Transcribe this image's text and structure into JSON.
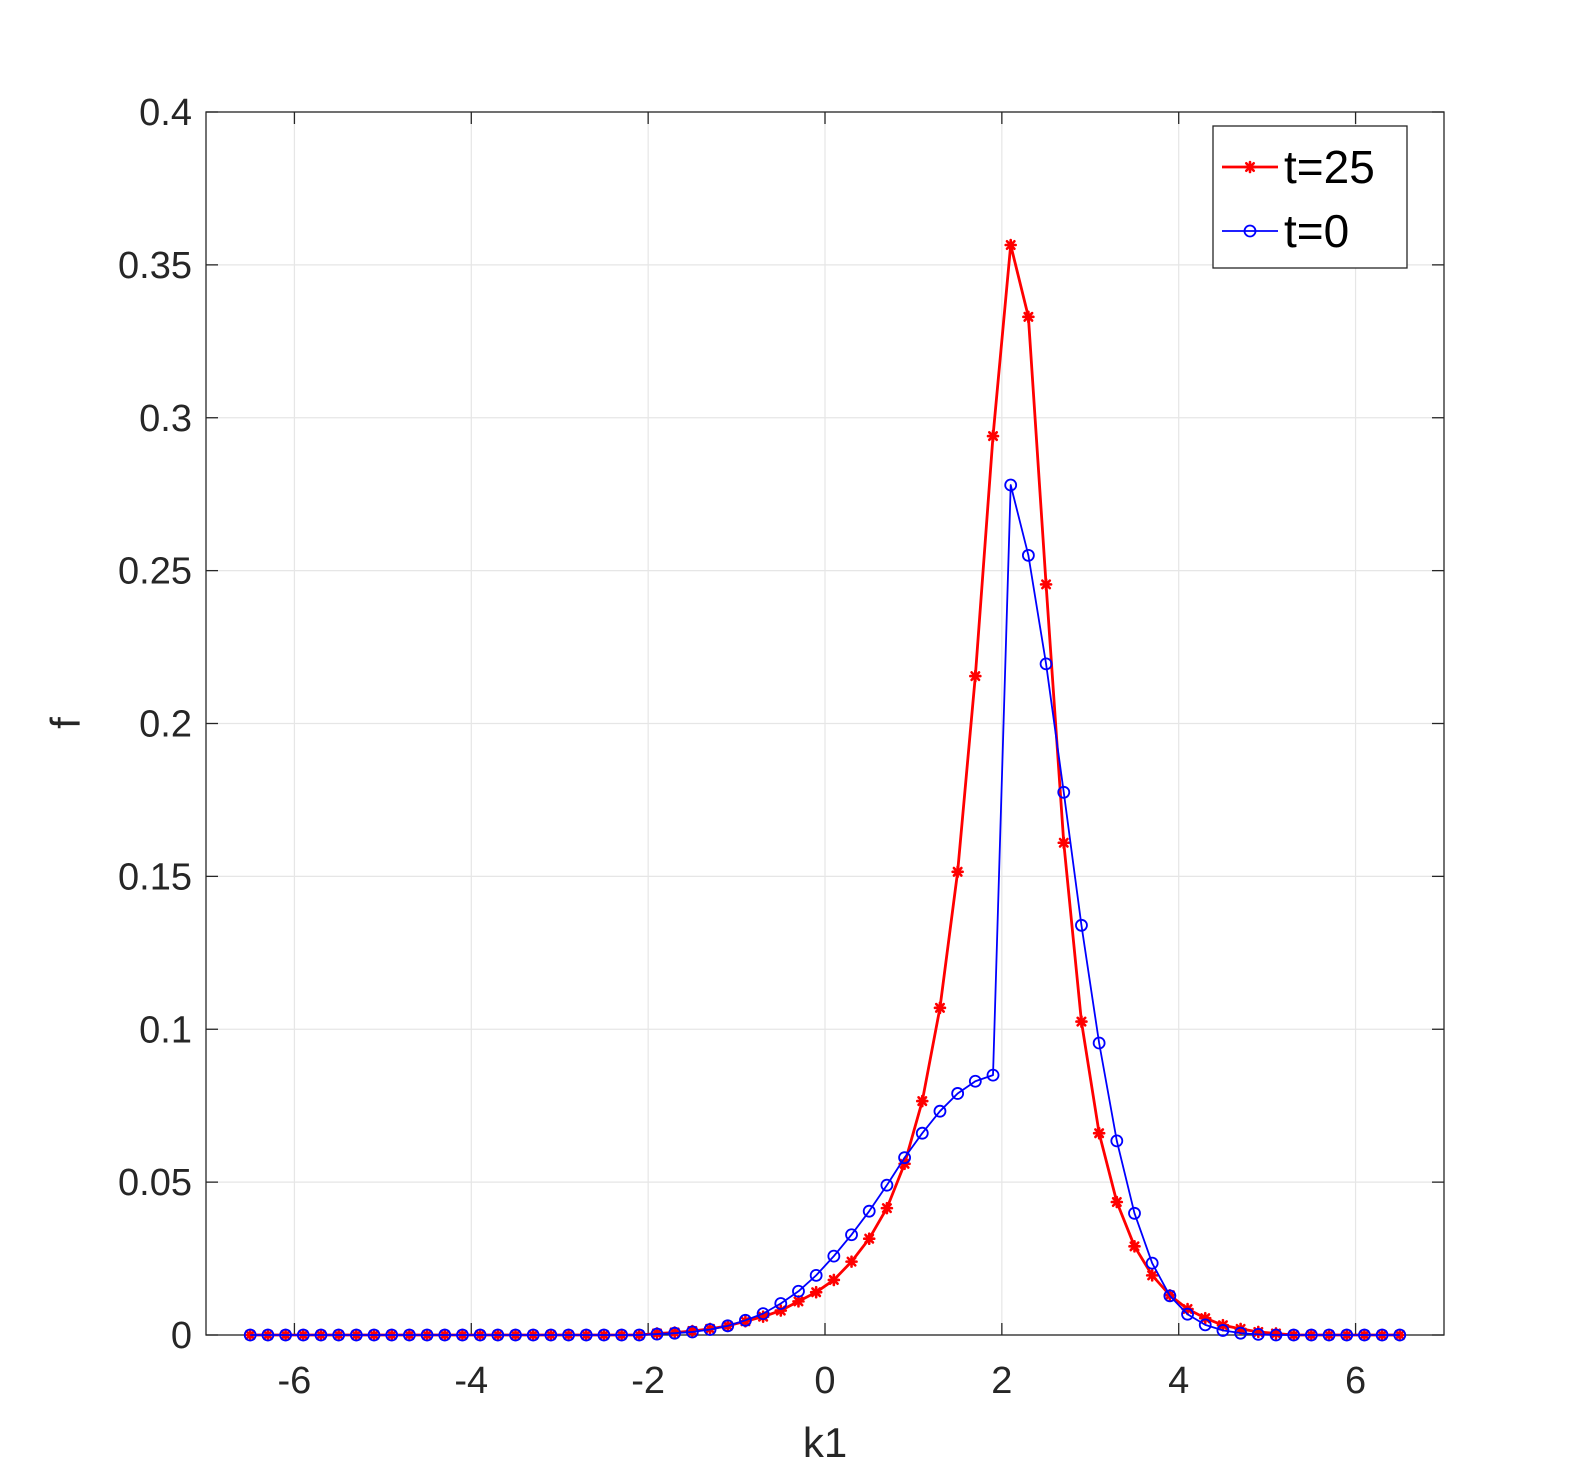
{
  "chart_data": {
    "type": "line",
    "title": "",
    "xlabel": "k1",
    "ylabel": "f",
    "xlim": [
      -7,
      7
    ],
    "ylim": [
      0,
      0.4
    ],
    "xticks": [
      -6,
      -4,
      -2,
      0,
      2,
      4,
      6
    ],
    "xtick_labels": [
      "-6",
      "-4",
      "-2",
      "0",
      "2",
      "4",
      "6"
    ],
    "yticks": [
      0,
      0.05,
      0.1,
      0.15,
      0.2,
      0.25,
      0.3,
      0.35,
      0.4
    ],
    "ytick_labels": [
      "0",
      "0.05",
      "0.1",
      "0.15",
      "0.2",
      "0.25",
      "0.3",
      "0.35",
      "0.4"
    ],
    "grid": true,
    "legend_position": "top-right",
    "x": [
      -6.5,
      -6.3,
      -6.1,
      -5.9,
      -5.7,
      -5.5,
      -5.3,
      -5.1,
      -4.9,
      -4.7,
      -4.5,
      -4.3,
      -4.1,
      -3.9,
      -3.7,
      -3.5,
      -3.3,
      -3.1,
      -2.9,
      -2.7,
      -2.5,
      -2.3,
      -2.1,
      -1.9,
      -1.7,
      -1.5,
      -1.3,
      -1.1,
      -0.9,
      -0.7,
      -0.5,
      -0.3,
      -0.1,
      0.1,
      0.3,
      0.5,
      0.7,
      0.9,
      1.1,
      1.3,
      1.5,
      1.7,
      1.9,
      2.1,
      2.3,
      2.5,
      2.7,
      2.9,
      3.1,
      3.3,
      3.5,
      3.7,
      3.9,
      4.1,
      4.3,
      4.5,
      4.7,
      4.9,
      5.1,
      5.3,
      5.5,
      5.7,
      5.9,
      6.1,
      6.3,
      6.5
    ],
    "series": [
      {
        "name": "t=25",
        "color": "#ff0000",
        "marker": "asterisk",
        "values": [
          0,
          0,
          0,
          0,
          0,
          0,
          0,
          0,
          0,
          0,
          0,
          0,
          0,
          0,
          0,
          0,
          0,
          0,
          0,
          0,
          0,
          0,
          0,
          0.0005,
          0.0008,
          0.0013,
          0.002,
          0.003,
          0.0045,
          0.006,
          0.008,
          0.011,
          0.014,
          0.018,
          0.024,
          0.0315,
          0.0415,
          0.056,
          0.0765,
          0.107,
          0.1515,
          0.2155,
          0.294,
          0.3565,
          0.333,
          0.2455,
          0.161,
          0.1025,
          0.066,
          0.0435,
          0.029,
          0.0195,
          0.013,
          0.0085,
          0.0055,
          0.0032,
          0.002,
          0.001,
          0.0005,
          0,
          0,
          0,
          0,
          0,
          0,
          0
        ]
      },
      {
        "name": "t=0",
        "color": "#0000ff",
        "marker": "circle",
        "values": [
          0,
          0,
          0,
          0,
          0,
          0,
          0,
          0,
          0,
          0,
          0,
          0,
          0,
          0,
          0,
          0,
          0,
          0,
          0,
          0,
          0,
          0,
          0,
          0.0003,
          0.0006,
          0.001,
          0.0018,
          0.003,
          0.0048,
          0.007,
          0.0103,
          0.0143,
          0.0195,
          0.0258,
          0.0328,
          0.0405,
          0.049,
          0.058,
          0.066,
          0.0732,
          0.079,
          0.083,
          0.085,
          0.278,
          0.255,
          0.2195,
          0.1775,
          0.134,
          0.0955,
          0.0635,
          0.0398,
          0.0235,
          0.0128,
          0.0068,
          0.0033,
          0.0015,
          0.0006,
          0.0002,
          0,
          0,
          0,
          0,
          0,
          0,
          0,
          0
        ]
      }
    ]
  }
}
